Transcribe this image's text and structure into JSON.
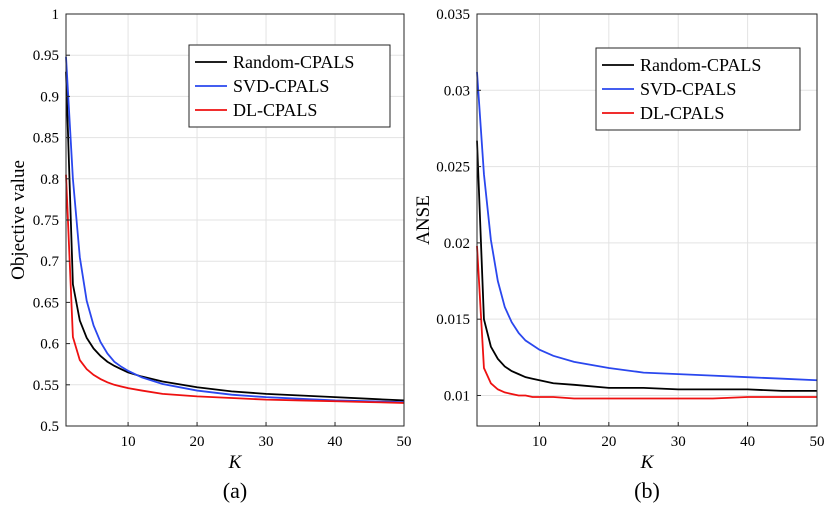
{
  "chart_data": [
    {
      "id": "a",
      "type": "line",
      "caption": "(a)",
      "title": "",
      "xlabel": "K",
      "ylabel": "Objective value",
      "xlim": [
        1,
        50
      ],
      "ylim": [
        0.5,
        1
      ],
      "xticks": [
        10,
        20,
        30,
        40,
        50
      ],
      "xtick_labels": [
        "10",
        "20",
        "30",
        "40",
        "50"
      ],
      "yticks": [
        0.5,
        0.55,
        0.6,
        0.65,
        0.7,
        0.75,
        0.8,
        0.85,
        0.9,
        0.95,
        1
      ],
      "ytick_labels": [
        "0.5",
        "0.55",
        "0.6",
        "0.65",
        "0.7",
        "0.75",
        "0.8",
        "0.85",
        "0.9",
        "0.95",
        "1"
      ],
      "grid": true,
      "legend_position": "top-right",
      "x": [
        1,
        2,
        3,
        4,
        5,
        6,
        7,
        8,
        9,
        10,
        12,
        15,
        20,
        25,
        30,
        35,
        40,
        45,
        50
      ],
      "series": [
        {
          "name": "Random-CPALS",
          "color": "#000000",
          "values": [
            0.93,
            0.672,
            0.628,
            0.607,
            0.594,
            0.585,
            0.578,
            0.573,
            0.569,
            0.565,
            0.56,
            0.554,
            0.547,
            0.542,
            0.539,
            0.537,
            0.535,
            0.533,
            0.531
          ]
        },
        {
          "name": "SVD-CPALS",
          "color": "#2a47ee",
          "values": [
            0.948,
            0.8,
            0.705,
            0.652,
            0.622,
            0.602,
            0.588,
            0.578,
            0.572,
            0.567,
            0.559,
            0.551,
            0.543,
            0.538,
            0.535,
            0.533,
            0.531,
            0.53,
            0.529
          ]
        },
        {
          "name": "DL-CPALS",
          "color": "#ee1111",
          "values": [
            0.805,
            0.608,
            0.58,
            0.569,
            0.562,
            0.557,
            0.553,
            0.55,
            0.548,
            0.546,
            0.543,
            0.539,
            0.536,
            0.534,
            0.532,
            0.531,
            0.53,
            0.529,
            0.528
          ]
        }
      ]
    },
    {
      "id": "b",
      "type": "line",
      "caption": "(b)",
      "title": "",
      "xlabel": "K",
      "ylabel": "ANSE",
      "xlim": [
        1,
        50
      ],
      "ylim": [
        0.008,
        0.035
      ],
      "xticks": [
        10,
        20,
        30,
        40,
        50
      ],
      "xtick_labels": [
        "10",
        "20",
        "30",
        "40",
        "50"
      ],
      "yticks": [
        0.01,
        0.015,
        0.02,
        0.025,
        0.03,
        0.035
      ],
      "ytick_labels": [
        "0.01",
        "0.015",
        "0.02",
        "0.025",
        "0.03",
        "0.035"
      ],
      "grid": true,
      "legend_position": "top-right",
      "x": [
        1,
        2,
        3,
        4,
        5,
        6,
        7,
        8,
        9,
        10,
        12,
        15,
        20,
        25,
        30,
        35,
        40,
        45,
        50
      ],
      "series": [
        {
          "name": "Random-CPALS",
          "color": "#000000",
          "values": [
            0.0267,
            0.015,
            0.0132,
            0.0124,
            0.0119,
            0.0116,
            0.0114,
            0.0112,
            0.0111,
            0.011,
            0.0108,
            0.0107,
            0.0105,
            0.0105,
            0.0104,
            0.0104,
            0.0104,
            0.0103,
            0.0103
          ]
        },
        {
          "name": "SVD-CPALS",
          "color": "#2a47ee",
          "values": [
            0.0312,
            0.0245,
            0.0202,
            0.0175,
            0.0158,
            0.0148,
            0.0141,
            0.0136,
            0.0133,
            0.013,
            0.0126,
            0.0122,
            0.0118,
            0.0115,
            0.0114,
            0.0113,
            0.0112,
            0.0111,
            0.011
          ]
        },
        {
          "name": "DL-CPALS",
          "color": "#ee1111",
          "values": [
            0.0198,
            0.0118,
            0.0108,
            0.0104,
            0.0102,
            0.0101,
            0.01,
            0.01,
            0.0099,
            0.0099,
            0.0099,
            0.0098,
            0.0098,
            0.0098,
            0.0098,
            0.0098,
            0.0099,
            0.0099,
            0.0099
          ]
        }
      ]
    }
  ]
}
